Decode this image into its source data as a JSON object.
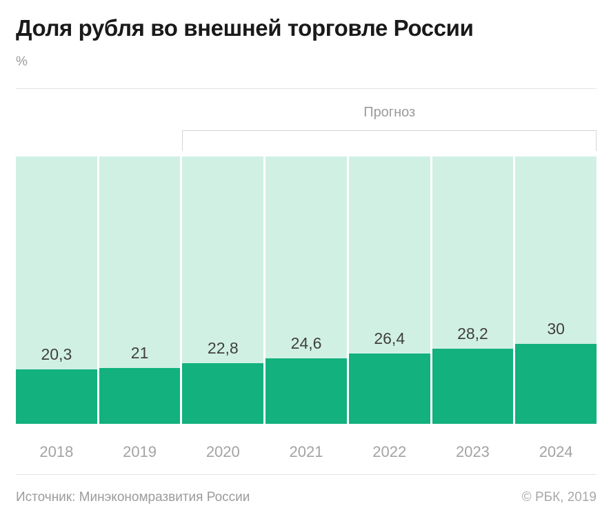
{
  "page": {
    "title": "Доля рубля во внешней торговле России",
    "unit_label": "%",
    "forecast_label": "Прогноз",
    "source": "Источник: Минэкономразвития России",
    "copyright": "© РБК, 2019"
  },
  "colors": {
    "bar_fill": "#12B17E",
    "bar_background": "#D1F0E4",
    "title_text": "#1A1A1A",
    "muted_text": "#9B9B9B",
    "value_text": "#404040",
    "axis_text": "#A3A3A3",
    "copyright_text": "#A8A8A8",
    "hairline": "#E3E3E3",
    "bracket_border": "#D6D6D6",
    "background": "#FFFFFF"
  },
  "chart_data": {
    "type": "bar",
    "title": "Доля рубля во внешней торговле России",
    "ylabel": "%",
    "categories": [
      "2018",
      "2019",
      "2020",
      "2021",
      "2022",
      "2023",
      "2024"
    ],
    "values": [
      20.3,
      21,
      22.8,
      24.6,
      26.4,
      28.2,
      30
    ],
    "value_labels": [
      "20,3",
      "21",
      "22,8",
      "24,6",
      "26,4",
      "28,2",
      "30"
    ],
    "ylim": [
      0,
      100
    ],
    "grid": false,
    "legend": false,
    "annotations": {
      "forecast": {
        "label": "Прогноз",
        "start_category": "2020",
        "end_category": "2024"
      }
    }
  }
}
